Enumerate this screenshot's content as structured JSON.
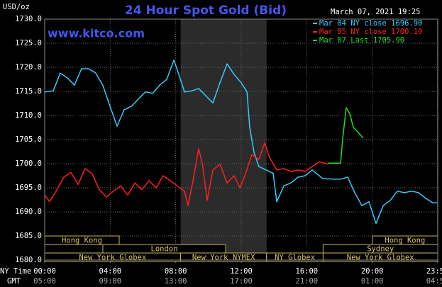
{
  "chart_data": {
    "type": "line",
    "title": "24 Hour Spot Gold (Bid)",
    "subtitle": "www.kitco.com",
    "timestamp": "March 07, 2021 19:25",
    "ylabel": "USD/oz",
    "xlabel": "NY Time",
    "x2label": "GMT",
    "xlim": [
      0,
      24
    ],
    "ylim": [
      1680,
      1730
    ],
    "yticks": [
      {
        "value": 1680,
        "label": "1680.0"
      },
      {
        "value": 1685,
        "label": "1685.0"
      },
      {
        "value": 1690,
        "label": "1690.0"
      },
      {
        "value": 1695,
        "label": "1695.0"
      },
      {
        "value": 1700,
        "label": "1700.0"
      },
      {
        "value": 1705,
        "label": "1705.0"
      },
      {
        "value": 1710,
        "label": "1710.0"
      },
      {
        "value": 1715,
        "label": "1715.0"
      },
      {
        "value": 1720,
        "label": "1720.0"
      },
      {
        "value": 1725,
        "label": "1725.0"
      },
      {
        "value": 1730,
        "label": "1730.0"
      }
    ],
    "xticks": [
      {
        "value": 0,
        "label": "00:00"
      },
      {
        "value": 4,
        "label": "04:00"
      },
      {
        "value": 8,
        "label": "08:00"
      },
      {
        "value": 12,
        "label": "12:00"
      },
      {
        "value": 16,
        "label": "16:00"
      },
      {
        "value": 20,
        "label": "20:00"
      },
      {
        "value": 23.98,
        "label": "23:59"
      }
    ],
    "x2ticks": [
      {
        "value": 0,
        "label": "05:00"
      },
      {
        "value": 4,
        "label": "09:00"
      },
      {
        "value": 8,
        "label": "13:00"
      },
      {
        "value": 12,
        "label": "17:00"
      },
      {
        "value": 16,
        "label": "21:00"
      },
      {
        "value": 20,
        "label": "01:00"
      },
      {
        "value": 23.98,
        "label": "04:59"
      }
    ],
    "grid": true,
    "shaded": [
      8.3,
      13.55
    ],
    "session_rows": [
      [
        {
          "label": "Hong Kong",
          "start": 0,
          "end": 4.55
        },
        {
          "label": "Hong Kong",
          "start": 20,
          "end": 24
        }
      ],
      [
        {
          "label": "London",
          "start": 3.55,
          "end": 11.05
        },
        {
          "label": "Sydney",
          "start": 17,
          "end": 24
        }
      ],
      [
        {
          "label": "New York Globex",
          "start": 0,
          "end": 8.3
        },
        {
          "label": "New York NYMEX",
          "start": 8.3,
          "end": 13.55
        },
        {
          "label": "NY Globex",
          "start": 13.55,
          "end": 17
        },
        {
          "label": "New York Globex",
          "start": 17,
          "end": 24
        }
      ]
    ],
    "series": [
      {
        "name": "Mar 04 NY close 1696.90",
        "color": "#33ccff",
        "x": [
          0,
          0.52,
          0.95,
          1.39,
          1.82,
          2.25,
          2.69,
          3.12,
          3.55,
          3.99,
          4.42,
          4.85,
          5.29,
          5.72,
          6.15,
          6.59,
          7.02,
          7.45,
          7.89,
          8.19,
          8.54,
          8.97,
          9.4,
          9.84,
          10.27,
          10.7,
          11.14,
          11.57,
          12.0,
          12.35,
          12.52,
          12.78,
          13.08,
          13.52,
          13.95,
          14.17,
          14.6,
          15.03,
          15.47,
          15.9,
          16.33,
          16.98,
          17.63,
          18.07,
          18.5,
          18.93,
          19.37,
          19.8,
          20.23,
          20.67,
          21.1,
          21.53,
          21.97,
          22.4,
          22.83,
          23.27,
          23.7,
          23.98
        ],
        "values": [
          1714.9,
          1715.1,
          1718.8,
          1717.8,
          1716.3,
          1719.7,
          1719.7,
          1718.8,
          1716.3,
          1711.9,
          1707.8,
          1711.2,
          1711.9,
          1713.4,
          1714.9,
          1714.6,
          1716.3,
          1717.5,
          1721.5,
          1718.5,
          1714.9,
          1715.1,
          1715.6,
          1714.1,
          1712.6,
          1716.8,
          1720.7,
          1718.5,
          1716.8,
          1714.9,
          1707.5,
          1702.4,
          1699.4,
          1698.7,
          1698.0,
          1692.1,
          1695.4,
          1696.0,
          1697.2,
          1697.5,
          1698.7,
          1696.9,
          1696.8,
          1696.8,
          1697.2,
          1694.0,
          1691.3,
          1692.1,
          1687.6,
          1691.3,
          1692.4,
          1694.3,
          1694.0,
          1694.3,
          1694.0,
          1692.8,
          1691.9,
          1691.9
        ]
      },
      {
        "name": "Mar 05 NY close 1700.10",
        "color": "#ff2020",
        "x": [
          0,
          0.3,
          0.74,
          1.17,
          1.6,
          2.04,
          2.47,
          2.9,
          3.34,
          3.77,
          4.2,
          4.64,
          5.07,
          5.5,
          5.94,
          6.37,
          6.8,
          7.24,
          7.67,
          8.1,
          8.54,
          8.75,
          9.06,
          9.4,
          9.62,
          9.92,
          10.27,
          10.7,
          11.14,
          11.57,
          11.92,
          12.22,
          12.65,
          13.08,
          13.43,
          13.73,
          14.17,
          14.6,
          15.03,
          15.47,
          15.9,
          16.33,
          16.77,
          17.29
        ],
        "values": [
          1693.5,
          1692.1,
          1694.6,
          1697.2,
          1698.2,
          1695.7,
          1699.0,
          1697.9,
          1694.6,
          1693.1,
          1694.3,
          1695.4,
          1693.5,
          1696.0,
          1694.6,
          1696.5,
          1695.0,
          1697.5,
          1696.5,
          1695.4,
          1694.3,
          1691.3,
          1696.5,
          1703.1,
          1700.1,
          1692.4,
          1698.7,
          1699.9,
          1696.0,
          1697.5,
          1695.0,
          1697.5,
          1701.9,
          1700.9,
          1704.3,
          1701.3,
          1698.7,
          1699.0,
          1698.4,
          1698.7,
          1698.4,
          1699.4,
          1700.4,
          1699.9
        ]
      },
      {
        "name": "Mar 07 Last 1705.90",
        "color": "#22dd22",
        "x": [
          17.29,
          18.07,
          18.2,
          18.41,
          18.63,
          18.85,
          19.06,
          19.28,
          19.45
        ],
        "values": [
          1700.1,
          1700.1,
          1705.3,
          1711.6,
          1710.4,
          1707.5,
          1706.8,
          1706.0,
          1705.3
        ]
      }
    ]
  }
}
